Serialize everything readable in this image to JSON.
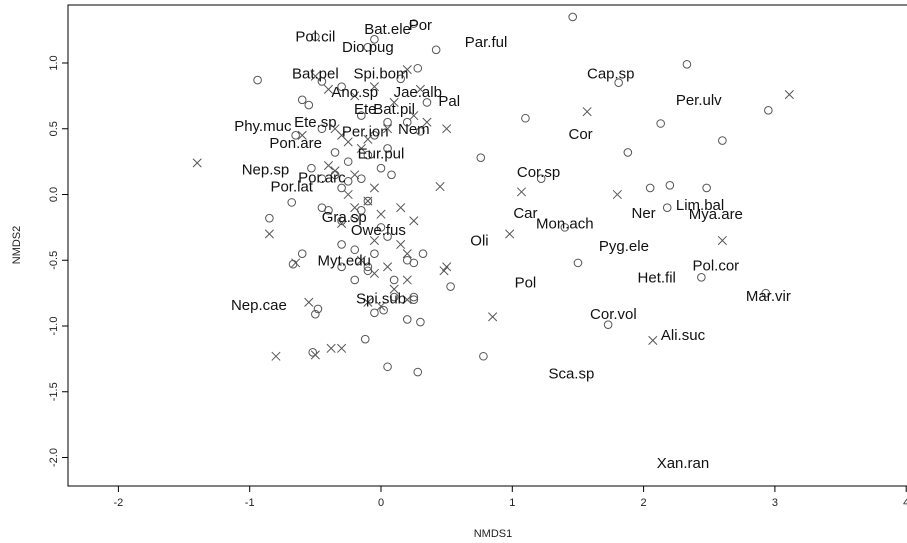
{
  "chart_data": {
    "type": "scatter",
    "xlabel": "NMDS1",
    "ylabel": "NMDS2",
    "xlim": [
      -2.3,
      4.0
    ],
    "ylim": [
      -2.1,
      1.4
    ],
    "x_ticks": [
      "-2",
      "-1",
      "0",
      "1",
      "2",
      "3",
      "4"
    ],
    "y_ticks": [
      "-2.0",
      "-1.5",
      "-1.0",
      "-0.5",
      "0.0",
      "0.5",
      "1.0"
    ],
    "grid": false,
    "series": [
      {
        "marker": "circle",
        "points": [
          [
            1.46,
            1.35
          ],
          [
            2.33,
            0.99
          ],
          [
            -0.94,
            0.87
          ],
          [
            1.81,
            0.85
          ],
          [
            2.95,
            0.64
          ],
          [
            1.1,
            0.58
          ],
          [
            2.13,
            0.54
          ],
          [
            2.6,
            0.41
          ],
          [
            1.88,
            0.32
          ],
          [
            0.76,
            0.28
          ],
          [
            1.22,
            0.12
          ],
          [
            2.05,
            0.05
          ],
          [
            2.48,
            0.05
          ],
          [
            2.2,
            0.07
          ],
          [
            2.18,
            -0.1
          ],
          [
            1.4,
            -0.25
          ],
          [
            1.5,
            -0.52
          ],
          [
            2.44,
            -0.63
          ],
          [
            2.93,
            -0.75
          ],
          [
            1.73,
            -0.99
          ],
          [
            0.78,
            -1.23
          ],
          [
            -0.85,
            -0.18
          ],
          [
            -0.68,
            -0.06
          ],
          [
            -0.6,
            -0.45
          ],
          [
            -0.67,
            -0.53
          ],
          [
            -0.5,
            -0.91
          ],
          [
            -0.48,
            -0.87
          ],
          [
            -0.52,
            -1.2
          ],
          [
            -0.53,
            0.2
          ],
          [
            -0.45,
            0.12
          ],
          [
            -0.35,
            0.15
          ],
          [
            -0.25,
            0.1
          ],
          [
            -0.15,
            0.12
          ],
          [
            -0.3,
            0.05
          ],
          [
            -0.1,
            -0.05
          ],
          [
            -0.2,
            -0.18
          ],
          [
            0.0,
            0.2
          ],
          [
            0.05,
            0.35
          ],
          [
            -0.05,
            0.45
          ],
          [
            -0.45,
            0.5
          ],
          [
            -0.35,
            0.32
          ],
          [
            -0.25,
            0.25
          ],
          [
            -0.1,
            0.3
          ],
          [
            0.08,
            0.15
          ],
          [
            -0.45,
            -0.1
          ],
          [
            -0.4,
            -0.12
          ],
          [
            -0.3,
            -0.2
          ],
          [
            -0.15,
            -0.12
          ],
          [
            0.0,
            -0.25
          ],
          [
            0.05,
            -0.32
          ],
          [
            -0.05,
            -0.45
          ],
          [
            -0.3,
            -0.38
          ],
          [
            -0.2,
            -0.42
          ],
          [
            -0.1,
            -0.55
          ],
          [
            0.2,
            -0.5
          ],
          [
            0.32,
            -0.45
          ],
          [
            0.25,
            -0.52
          ],
          [
            -0.3,
            -0.55
          ],
          [
            -0.1,
            -0.58
          ],
          [
            0.1,
            -0.65
          ],
          [
            -0.2,
            -0.65
          ],
          [
            0.1,
            -0.78
          ],
          [
            0.25,
            -0.78
          ],
          [
            0.25,
            -0.8
          ],
          [
            0.02,
            -0.88
          ],
          [
            -0.05,
            -0.9
          ],
          [
            0.2,
            -0.95
          ],
          [
            0.3,
            -0.97
          ],
          [
            -0.12,
            -1.1
          ],
          [
            0.05,
            -1.31
          ],
          [
            0.28,
            -1.35
          ],
          [
            0.53,
            -0.7
          ],
          [
            -0.45,
            0.86
          ],
          [
            -0.55,
            0.68
          ],
          [
            -0.6,
            0.72
          ],
          [
            -0.3,
            0.82
          ],
          [
            0.15,
            0.88
          ],
          [
            0.28,
            0.96
          ],
          [
            0.35,
            0.7
          ],
          [
            0.2,
            0.55
          ],
          [
            0.05,
            0.55
          ],
          [
            -0.15,
            0.6
          ],
          [
            0.3,
            0.48
          ],
          [
            -0.1,
            1.12
          ],
          [
            -0.05,
            1.18
          ],
          [
            0.25,
            1.3
          ],
          [
            0.42,
            1.1
          ],
          [
            -0.5,
            1.2
          ],
          [
            -0.65,
            0.45
          ]
        ]
      },
      {
        "marker": "x",
        "points": [
          [
            -1.4,
            0.24
          ],
          [
            -0.8,
            -1.23
          ],
          [
            -0.55,
            -0.82
          ],
          [
            -0.65,
            -0.52
          ],
          [
            -0.85,
            -0.3
          ],
          [
            -0.38,
            -1.17
          ],
          [
            -0.3,
            -1.17
          ],
          [
            -0.5,
            -1.22
          ],
          [
            -0.6,
            0.45
          ],
          [
            -0.35,
            0.5
          ],
          [
            -0.3,
            0.45
          ],
          [
            -0.25,
            0.4
          ],
          [
            -0.15,
            0.35
          ],
          [
            -0.4,
            0.22
          ],
          [
            -0.35,
            0.18
          ],
          [
            -0.2,
            0.15
          ],
          [
            -0.05,
            0.05
          ],
          [
            -0.25,
            0.0
          ],
          [
            -0.1,
            -0.05
          ],
          [
            -0.2,
            -0.1
          ],
          [
            -0.3,
            -0.22
          ],
          [
            0.0,
            -0.15
          ],
          [
            0.15,
            -0.1
          ],
          [
            0.25,
            -0.2
          ],
          [
            -0.05,
            -0.35
          ],
          [
            0.15,
            -0.38
          ],
          [
            0.2,
            -0.45
          ],
          [
            -0.15,
            -0.5
          ],
          [
            -0.05,
            -0.6
          ],
          [
            0.05,
            -0.55
          ],
          [
            0.2,
            -0.65
          ],
          [
            0.1,
            -0.72
          ],
          [
            -0.1,
            -0.82
          ],
          [
            0.0,
            -0.85
          ],
          [
            0.2,
            -0.8
          ],
          [
            0.3,
            0.8
          ],
          [
            0.5,
            0.5
          ],
          [
            0.2,
            0.95
          ],
          [
            0.45,
            0.06
          ],
          [
            0.5,
            -0.55
          ],
          [
            0.48,
            -0.58
          ],
          [
            0.85,
            -0.93
          ],
          [
            0.98,
            -0.3
          ],
          [
            1.07,
            0.02
          ],
          [
            1.57,
            0.63
          ],
          [
            1.8,
            0.0
          ],
          [
            2.6,
            -0.35
          ],
          [
            3.11,
            0.76
          ],
          [
            2.07,
            -1.11
          ],
          [
            0.05,
            0.5
          ],
          [
            -0.1,
            0.42
          ],
          [
            -0.5,
            0.9
          ],
          [
            -0.4,
            0.8
          ],
          [
            -0.2,
            0.75
          ],
          [
            0.1,
            0.7
          ],
          [
            0.25,
            0.6
          ],
          [
            0.35,
            0.55
          ],
          [
            -0.05,
            0.82
          ]
        ]
      }
    ],
    "labels": [
      {
        "text": "Pol.cil",
        "x": -0.5,
        "y": 1.2
      },
      {
        "text": "Bat.ele",
        "x": 0.05,
        "y": 1.26
      },
      {
        "text": "Por",
        "x": 0.3,
        "y": 1.29
      },
      {
        "text": "Dio.pug",
        "x": -0.1,
        "y": 1.12
      },
      {
        "text": "Par.ful",
        "x": 0.8,
        "y": 1.16
      },
      {
        "text": "Cap.sp",
        "x": 1.75,
        "y": 0.92
      },
      {
        "text": "Bat.pel",
        "x": -0.5,
        "y": 0.92
      },
      {
        "text": "Spi.bom",
        "x": 0.0,
        "y": 0.92
      },
      {
        "text": "Ano.sp",
        "x": -0.2,
        "y": 0.78
      },
      {
        "text": "Jae.alb",
        "x": 0.28,
        "y": 0.78
      },
      {
        "text": "Pal",
        "x": 0.52,
        "y": 0.71
      },
      {
        "text": "Per.ulv",
        "x": 2.42,
        "y": 0.72
      },
      {
        "text": "Ete",
        "x": -0.12,
        "y": 0.65
      },
      {
        "text": "Bat.pil",
        "x": 0.1,
        "y": 0.65
      },
      {
        "text": "Ete.sp",
        "x": -0.5,
        "y": 0.55
      },
      {
        "text": "Phy.muc",
        "x": -0.9,
        "y": 0.52
      },
      {
        "text": "Nem",
        "x": 0.25,
        "y": 0.5
      },
      {
        "text": "Per.ion",
        "x": -0.12,
        "y": 0.48
      },
      {
        "text": "Cor",
        "x": 1.52,
        "y": 0.46
      },
      {
        "text": "Pon.are",
        "x": -0.65,
        "y": 0.39
      },
      {
        "text": "Eur.pul",
        "x": 0.0,
        "y": 0.31
      },
      {
        "text": "Nep.sp",
        "x": -0.88,
        "y": 0.19
      },
      {
        "text": "Cor.sp",
        "x": 1.2,
        "y": 0.17
      },
      {
        "text": "Por.arc",
        "x": -0.45,
        "y": 0.13
      },
      {
        "text": "Por.lat",
        "x": -0.68,
        "y": 0.06
      },
      {
        "text": "Lim.bal",
        "x": 2.43,
        "y": -0.08
      },
      {
        "text": "Car",
        "x": 1.1,
        "y": -0.14
      },
      {
        "text": "Ner",
        "x": 2.0,
        "y": -0.14
      },
      {
        "text": "Mya.are",
        "x": 2.55,
        "y": -0.15
      },
      {
        "text": "Gra.sp",
        "x": -0.28,
        "y": -0.17
      },
      {
        "text": "Mon.ach",
        "x": 1.4,
        "y": -0.22
      },
      {
        "text": "Owe.fus",
        "x": -0.02,
        "y": -0.27
      },
      {
        "text": "Oli",
        "x": 0.75,
        "y": -0.35
      },
      {
        "text": "Pyg.ele",
        "x": 1.85,
        "y": -0.39
      },
      {
        "text": "Myt.edu",
        "x": -0.28,
        "y": -0.5
      },
      {
        "text": "Pol.cor",
        "x": 2.55,
        "y": -0.54
      },
      {
        "text": "Het.fil",
        "x": 2.1,
        "y": -0.63
      },
      {
        "text": "Pol",
        "x": 1.1,
        "y": -0.67
      },
      {
        "text": "Mar.vir",
        "x": 2.95,
        "y": -0.77
      },
      {
        "text": "Spi.sub",
        "x": 0.0,
        "y": -0.79
      },
      {
        "text": "Nep.cae",
        "x": -0.93,
        "y": -0.84
      },
      {
        "text": "Cor.vol",
        "x": 1.77,
        "y": -0.91
      },
      {
        "text": "Ali.suc",
        "x": 2.3,
        "y": -1.07
      },
      {
        "text": "Sca.sp",
        "x": 1.45,
        "y": -1.36
      },
      {
        "text": "Xan.ran",
        "x": 2.3,
        "y": -2.04
      }
    ]
  }
}
